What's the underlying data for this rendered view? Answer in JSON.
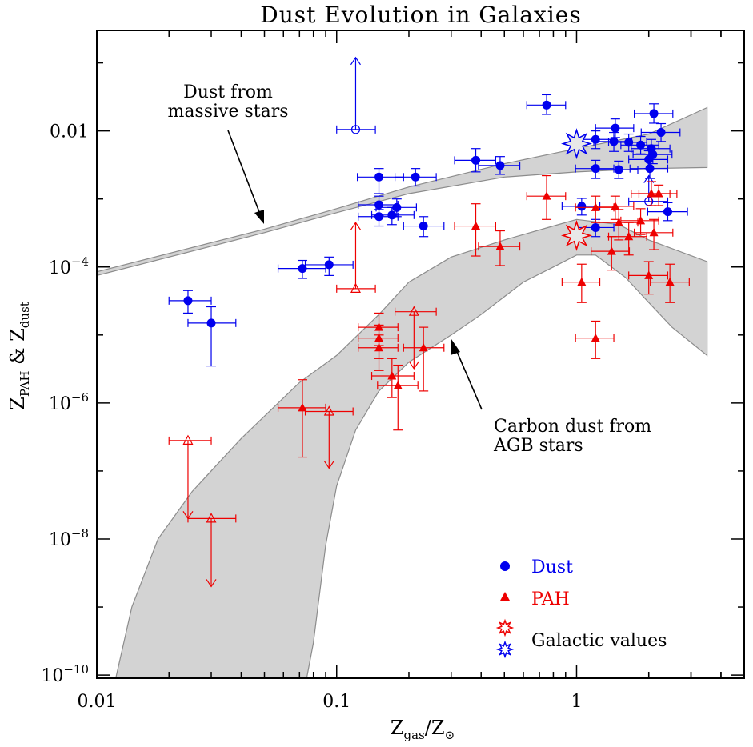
{
  "chart_data": {
    "type": "scatter",
    "title": "Dust Evolution in Galaxies",
    "xlabel": {
      "main": "Z",
      "sub1": "gas",
      "slash": "/Z",
      "sub2": "⊙"
    },
    "ylabel": {
      "z1": "Z",
      "sub1": "PAH",
      "amp": " & Z",
      "sub2": "dust"
    },
    "x_scale": "log",
    "y_scale": "log",
    "xlim": [
      0.01,
      5
    ],
    "ylim": [
      9e-11,
      0.3
    ],
    "x_ticks": [
      {
        "value": 0.01,
        "label": "0.01"
      },
      {
        "value": 0.1,
        "label": "0.1"
      },
      {
        "value": 1,
        "label": "1"
      }
    ],
    "y_ticks": [
      {
        "value": 0.01,
        "label": "0.01",
        "exp": ""
      },
      {
        "value": 0.0001,
        "label": "10",
        "exp": "−4"
      },
      {
        "value": 1e-06,
        "label": "10",
        "exp": "−6"
      },
      {
        "value": 1e-08,
        "label": "10",
        "exp": "−8"
      },
      {
        "value": 1e-10,
        "label": "10",
        "exp": "−10"
      }
    ],
    "colors": {
      "dust": "#0000ee",
      "pah": "#ee0000",
      "band_fill": "#d3d3d3",
      "band_stroke": "#8c8c8c"
    },
    "annotations": {
      "massive": {
        "lines": [
          "Dust from",
          "massive stars"
        ]
      },
      "agb": {
        "lines": [
          "Carbon dust from",
          "AGB stars"
        ]
      }
    },
    "legend": {
      "placement": "bottom-right",
      "dust": "Dust",
      "pah": "PAH",
      "galactic": "Galactic values"
    },
    "bands": {
      "massive_stars": {
        "upper": [
          [
            0.01,
            8.5e-05
          ],
          [
            0.05,
            0.00036
          ],
          [
            0.1,
            0.00072
          ],
          [
            0.2,
            0.0015
          ],
          [
            0.5,
            0.0033
          ],
          [
            1,
            0.0055
          ],
          [
            2,
            0.009
          ],
          [
            3.5,
            0.022
          ]
        ],
        "lower": [
          [
            0.01,
            7.5e-05
          ],
          [
            0.05,
            0.00032
          ],
          [
            0.1,
            0.00063
          ],
          [
            0.2,
            0.0012
          ],
          [
            0.5,
            0.0021
          ],
          [
            1,
            0.0025
          ],
          [
            2,
            0.0028
          ],
          [
            3.5,
            0.0029
          ]
        ]
      },
      "agb_stars": {
        "upper": [
          [
            0.012,
            9e-11
          ],
          [
            0.014,
            1e-09
          ],
          [
            0.018,
            1e-08
          ],
          [
            0.025,
            5e-08
          ],
          [
            0.04,
            3e-07
          ],
          [
            0.07,
            2e-06
          ],
          [
            0.1,
            5e-06
          ],
          [
            0.15,
            2e-05
          ],
          [
            0.2,
            6e-05
          ],
          [
            0.3,
            0.00014
          ],
          [
            0.5,
            0.00025
          ],
          [
            0.8,
            0.0004
          ],
          [
            1.0,
            0.0005
          ],
          [
            1.5,
            0.00042
          ],
          [
            2.0,
            0.00025
          ],
          [
            3.5,
            0.00012
          ]
        ],
        "lower": [
          [
            3.5,
            5e-06
          ],
          [
            2.5,
            1.3e-05
          ],
          [
            2.0,
            3e-05
          ],
          [
            1.6,
            7e-05
          ],
          [
            1.2,
            0.00015
          ],
          [
            1.0,
            0.00015
          ],
          [
            0.8,
            0.0001
          ],
          [
            0.6,
            6e-05
          ],
          [
            0.4,
            2e-05
          ],
          [
            0.3,
            1e-05
          ],
          [
            0.2,
            4e-06
          ],
          [
            0.15,
            1.5e-06
          ],
          [
            0.12,
            4e-07
          ],
          [
            0.1,
            6e-08
          ],
          [
            0.09,
            8e-09
          ],
          [
            0.08,
            3e-10
          ],
          [
            0.075,
            9e-11
          ]
        ]
      }
    },
    "series": [
      {
        "name": "Dust",
        "marker": "circle",
        "points": [
          {
            "x": 0.024,
            "y": 3.2e-05,
            "xlo": 0.02,
            "xhi": 0.03,
            "ylo": 2.1e-05,
            "yhi": 4.5e-05
          },
          {
            "x": 0.03,
            "y": 1.5e-05,
            "xlo": 0.024,
            "xhi": 0.038,
            "ylo": 3.5e-06,
            "yhi": 2.6e-05
          },
          {
            "x": 0.072,
            "y": 9.5e-05,
            "xlo": 0.057,
            "xhi": 0.09,
            "ylo": 6.8e-05,
            "yhi": 0.000125
          },
          {
            "x": 0.093,
            "y": 0.000108,
            "xlo": 0.074,
            "xhi": 0.117,
            "ylo": 7.5e-05,
            "yhi": 0.00014
          },
          {
            "x": 0.15,
            "y": 0.0021,
            "xlo": 0.122,
            "xhi": 0.19,
            "ylo": 0.0012,
            "yhi": 0.0028
          },
          {
            "x": 0.15,
            "y": 0.00082,
            "xlo": 0.123,
            "xhi": 0.18,
            "ylo": 0.00057,
            "yhi": 0.0011
          },
          {
            "x": 0.15,
            "y": 0.00055,
            "xlo": 0.123,
            "xhi": 0.18,
            "ylo": 0.0004,
            "yhi": 0.0007
          },
          {
            "x": 0.17,
            "y": 0.00058,
            "xlo": 0.14,
            "xhi": 0.21,
            "ylo": 0.00042,
            "yhi": 0.00075
          },
          {
            "x": 0.178,
            "y": 0.00075,
            "xlo": 0.146,
            "xhi": 0.215,
            "ylo": 0.00055,
            "yhi": 0.001
          },
          {
            "x": 0.213,
            "y": 0.0021,
            "xlo": 0.175,
            "xhi": 0.26,
            "ylo": 0.00155,
            "yhi": 0.0028
          },
          {
            "x": 0.23,
            "y": 0.0004,
            "xlo": 0.19,
            "xhi": 0.28,
            "ylo": 0.00028,
            "yhi": 0.00055
          },
          {
            "x": 0.38,
            "y": 0.0037,
            "xlo": 0.31,
            "xhi": 0.46,
            "ylo": 0.0025,
            "yhi": 0.0055
          },
          {
            "x": 0.48,
            "y": 0.0031,
            "xlo": 0.39,
            "xhi": 0.58,
            "ylo": 0.0023,
            "yhi": 0.0042
          },
          {
            "x": 0.75,
            "y": 0.024,
            "xlo": 0.62,
            "xhi": 0.9,
            "ylo": 0.0175,
            "yhi": 0.034
          },
          {
            "x": 1.05,
            "y": 0.00078,
            "xlo": 0.87,
            "xhi": 1.25,
            "ylo": 0.00058,
            "yhi": 0.00102
          },
          {
            "x": 1.2,
            "y": 0.00038,
            "xlo": 0.99,
            "xhi": 1.43,
            "ylo": 0.00028,
            "yhi": 0.0005
          },
          {
            "x": 1.2,
            "y": 0.0028,
            "xlo": 0.99,
            "xhi": 1.43,
            "ylo": 0.002,
            "yhi": 0.0037
          },
          {
            "x": 1.2,
            "y": 0.0075,
            "xlo": 0.99,
            "xhi": 1.43,
            "ylo": 0.0055,
            "yhi": 0.01
          },
          {
            "x": 1.43,
            "y": 0.007,
            "xlo": 1.18,
            "xhi": 1.7,
            "ylo": 0.005,
            "yhi": 0.0095
          },
          {
            "x": 1.45,
            "y": 0.011,
            "xlo": 1.2,
            "xhi": 1.73,
            "ylo": 0.008,
            "yhi": 0.015
          },
          {
            "x": 1.5,
            "y": 0.0027,
            "xlo": 1.24,
            "xhi": 1.8,
            "ylo": 0.002,
            "yhi": 0.0036
          },
          {
            "x": 1.65,
            "y": 0.0068,
            "xlo": 1.36,
            "xhi": 1.96,
            "ylo": 0.005,
            "yhi": 0.009
          },
          {
            "x": 1.85,
            "y": 0.0062,
            "xlo": 1.53,
            "xhi": 2.2,
            "ylo": 0.0046,
            "yhi": 0.0083
          },
          {
            "x": 2.0,
            "y": 0.0038,
            "xlo": 1.65,
            "xhi": 2.4,
            "ylo": 0.0028,
            "yhi": 0.0051
          },
          {
            "x": 2.02,
            "y": 0.0028,
            "xlo": 1.67,
            "xhi": 2.4,
            "ylo": 0.002,
            "yhi": 0.0038
          },
          {
            "x": 2.05,
            "y": 0.0055,
            "xlo": 1.69,
            "xhi": 2.45,
            "ylo": 0.004,
            "yhi": 0.0075
          },
          {
            "x": 2.08,
            "y": 0.0045,
            "xlo": 1.72,
            "xhi": 2.5,
            "ylo": 0.0033,
            "yhi": 0.006
          },
          {
            "x": 2.1,
            "y": 0.018,
            "xlo": 1.74,
            "xhi": 2.52,
            "ylo": 0.013,
            "yhi": 0.025
          },
          {
            "x": 2.25,
            "y": 0.0095,
            "xlo": 1.86,
            "xhi": 2.7,
            "ylo": 0.007,
            "yhi": 0.0128
          },
          {
            "x": 2.4,
            "y": 0.00065,
            "xlo": 1.98,
            "xhi": 2.9,
            "ylo": 0.00048,
            "yhi": 0.00088
          }
        ],
        "limits": [
          {
            "x": 0.12,
            "y": 0.0105,
            "xlo": 0.1,
            "xhi": 0.145,
            "direction": "up",
            "tip": 0.12
          },
          {
            "x": 2.0,
            "y": 0.00092,
            "xlo": 1.65,
            "xhi": 2.4,
            "direction": "up",
            "tip": 0.0022
          }
        ]
      },
      {
        "name": "PAH",
        "marker": "triangle",
        "points": [
          {
            "x": 0.072,
            "y": 8.5e-07,
            "xlo": 0.057,
            "xhi": 0.09,
            "ylo": 1.6e-07,
            "yhi": 2.2e-06
          },
          {
            "x": 0.15,
            "y": 1.3e-05,
            "xlo": 0.123,
            "xhi": 0.18,
            "ylo": 7e-06,
            "yhi": 2.1e-05
          },
          {
            "x": 0.15,
            "y": 9e-06,
            "xlo": 0.123,
            "xhi": 0.18,
            "ylo": 4.5e-06,
            "yhi": 1.4e-05
          },
          {
            "x": 0.15,
            "y": 6.5e-06,
            "xlo": 0.123,
            "xhi": 0.18,
            "ylo": 3e-06,
            "yhi": 1e-05
          },
          {
            "x": 0.17,
            "y": 2.5e-06,
            "xlo": 0.14,
            "xhi": 0.21,
            "ylo": 1.2e-06,
            "yhi": 4.5e-06
          },
          {
            "x": 0.18,
            "y": 1.8e-06,
            "xlo": 0.148,
            "xhi": 0.218,
            "ylo": 4e-07,
            "yhi": 3.6e-06
          },
          {
            "x": 0.23,
            "y": 6.5e-06,
            "xlo": 0.19,
            "xhi": 0.28,
            "ylo": 1.5e-06,
            "yhi": 1.3e-05
          },
          {
            "x": 0.38,
            "y": 0.0004,
            "xlo": 0.31,
            "xhi": 0.46,
            "ylo": 0.000145,
            "yhi": 0.00085
          },
          {
            "x": 0.48,
            "y": 0.0002,
            "xlo": 0.39,
            "xhi": 0.58,
            "ylo": 0.000105,
            "yhi": 0.00034
          },
          {
            "x": 0.75,
            "y": 0.0011,
            "xlo": 0.62,
            "xhi": 0.9,
            "ylo": 0.0005,
            "yhi": 0.0022
          },
          {
            "x": 1.05,
            "y": 6e-05,
            "xlo": 0.87,
            "xhi": 1.25,
            "ylo": 3e-05,
            "yhi": 0.00011
          },
          {
            "x": 1.2,
            "y": 9e-06,
            "xlo": 0.99,
            "xhi": 1.43,
            "ylo": 4.5e-06,
            "yhi": 1.6e-05
          },
          {
            "x": 1.2,
            "y": 0.00075,
            "xlo": 0.99,
            "xhi": 1.43,
            "ylo": 0.00045,
            "yhi": 0.0011
          },
          {
            "x": 1.4,
            "y": 0.00017,
            "xlo": 1.15,
            "xhi": 1.66,
            "ylo": 9e-05,
            "yhi": 0.00028
          },
          {
            "x": 1.45,
            "y": 0.00078,
            "xlo": 1.2,
            "xhi": 1.73,
            "ylo": 0.0005,
            "yhi": 0.0011
          },
          {
            "x": 1.5,
            "y": 0.00045,
            "xlo": 1.24,
            "xhi": 1.8,
            "ylo": 0.00025,
            "yhi": 0.0007
          },
          {
            "x": 1.65,
            "y": 0.00028,
            "xlo": 1.36,
            "xhi": 1.96,
            "ylo": 0.00015,
            "yhi": 0.00045
          },
          {
            "x": 1.85,
            "y": 0.00048,
            "xlo": 1.53,
            "xhi": 2.2,
            "ylo": 0.0003,
            "yhi": 0.00072
          },
          {
            "x": 2.0,
            "y": 7.5e-05,
            "xlo": 1.65,
            "xhi": 2.4,
            "ylo": 4e-05,
            "yhi": 0.00012
          },
          {
            "x": 2.05,
            "y": 0.0012,
            "xlo": 1.69,
            "xhi": 2.45,
            "ylo": 0.0008,
            "yhi": 0.0018
          },
          {
            "x": 2.1,
            "y": 0.00032,
            "xlo": 1.74,
            "xhi": 2.52,
            "ylo": 0.00018,
            "yhi": 0.0005
          },
          {
            "x": 2.2,
            "y": 0.0012,
            "xlo": 1.82,
            "xhi": 2.62,
            "ylo": 0.0008,
            "yhi": 0.0016
          },
          {
            "x": 2.45,
            "y": 6e-05,
            "xlo": 2.03,
            "xhi": 2.95,
            "ylo": 3e-05,
            "yhi": 0.00011
          }
        ],
        "limits": [
          {
            "x": 0.024,
            "y": 2.8e-07,
            "xlo": 0.02,
            "xhi": 0.03,
            "direction": "down",
            "tip": 2e-08
          },
          {
            "x": 0.03,
            "y": 2e-08,
            "xlo": 0.024,
            "xhi": 0.038,
            "direction": "down",
            "tip": 2e-09
          },
          {
            "x": 0.093,
            "y": 7.5e-07,
            "xlo": 0.074,
            "xhi": 0.117,
            "direction": "down",
            "tip": 1.1e-07
          },
          {
            "x": 0.12,
            "y": 4.8e-05,
            "xlo": 0.1,
            "xhi": 0.145,
            "direction": "up",
            "tip": 0.00045
          },
          {
            "x": 0.21,
            "y": 2.2e-05,
            "xlo": 0.175,
            "xhi": 0.26,
            "direction": "down",
            "tip": 3.2e-06
          }
        ]
      }
    ],
    "galactic_values": [
      {
        "name": "Dust",
        "x": 1.0,
        "y": 0.0065
      },
      {
        "name": "PAH",
        "x": 1.0,
        "y": 0.00029
      }
    ]
  }
}
